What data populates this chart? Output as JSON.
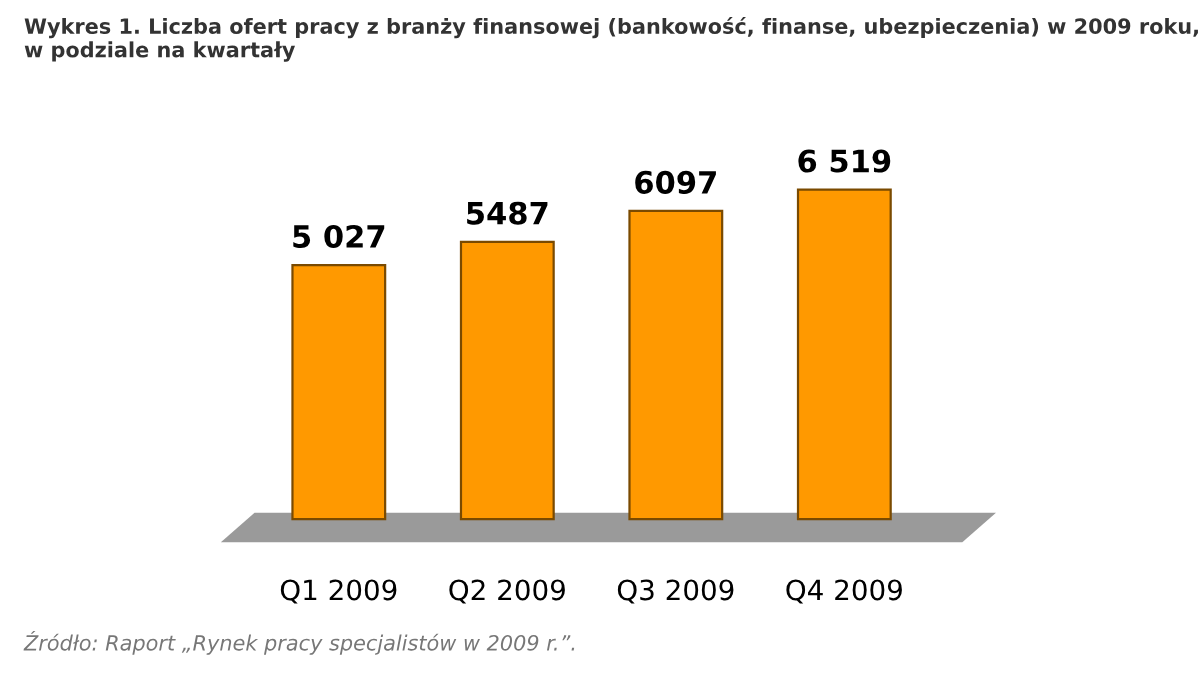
{
  "chart_data": {
    "type": "bar",
    "title": "Wykres 1. Liczba ofert pracy z branży finansowej (bankowość, finanse, ubezpieczenia) w 2009 roku,\nw podziale na kwartały",
    "categories": [
      "Q1 2009",
      "Q2 2009",
      "Q3 2009",
      "Q4 2009"
    ],
    "values": [
      5027,
      5487,
      6097,
      6519
    ],
    "value_labels": [
      "5 027",
      "5487",
      "6097",
      "6 519"
    ],
    "color": "#ff9900",
    "grid": false,
    "annotations": [
      "Źródło: Raport „Rynek pracy specjalistów w 2009 r.”."
    ]
  }
}
